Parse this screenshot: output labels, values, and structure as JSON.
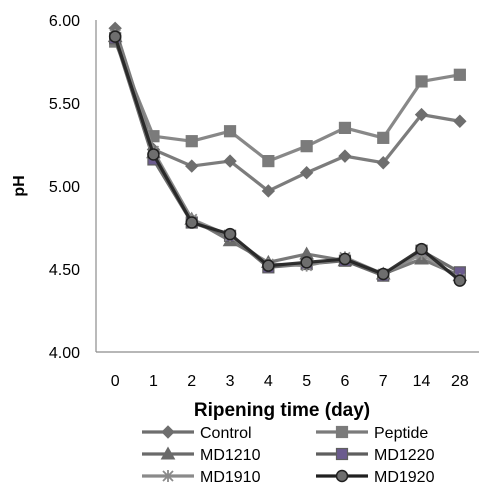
{
  "chart_data": {
    "type": "line",
    "xlabel": "Ripening time (day)",
    "ylabel": "pH",
    "categories": [
      "0",
      "1",
      "2",
      "3",
      "4",
      "5",
      "6",
      "7",
      "14",
      "28"
    ],
    "y_ticks": [
      "4.00",
      "4.50",
      "5.00",
      "5.50",
      "6.00"
    ],
    "ylim": [
      4.0,
      6.0
    ],
    "grid": false,
    "legend_position": "bottom",
    "series": [
      {
        "name": "Control",
        "marker": "diamond",
        "color": "#6e6e6e",
        "values": [
          5.95,
          5.22,
          5.12,
          5.15,
          4.97,
          5.08,
          5.18,
          5.14,
          5.43,
          5.39
        ]
      },
      {
        "name": "Peptide",
        "marker": "square",
        "color": "#7b7b7b",
        "values": [
          5.87,
          5.3,
          5.27,
          5.33,
          5.15,
          5.24,
          5.35,
          5.29,
          5.63,
          5.67
        ]
      },
      {
        "name": "MD1210",
        "marker": "triangle",
        "color": "#6a6a6a",
        "values": [
          5.9,
          5.2,
          4.8,
          4.67,
          4.54,
          4.59,
          4.55,
          4.47,
          4.56,
          4.46
        ]
      },
      {
        "name": "MD1220",
        "marker": "square",
        "color": "#5e5e5e",
        "markerFill": "#6b5b8e",
        "values": [
          5.89,
          5.16,
          4.78,
          4.7,
          4.51,
          4.53,
          4.55,
          4.46,
          4.61,
          4.48
        ]
      },
      {
        "name": "MD1910",
        "marker": "star",
        "color": "#8a8a8a",
        "values": [
          5.91,
          5.21,
          4.8,
          4.7,
          4.53,
          4.52,
          4.57,
          4.47,
          4.59,
          4.44
        ]
      },
      {
        "name": "MD1920",
        "marker": "circle",
        "color": "#202020",
        "values": [
          5.9,
          5.19,
          4.78,
          4.71,
          4.52,
          4.54,
          4.56,
          4.47,
          4.62,
          4.43
        ]
      }
    ]
  }
}
